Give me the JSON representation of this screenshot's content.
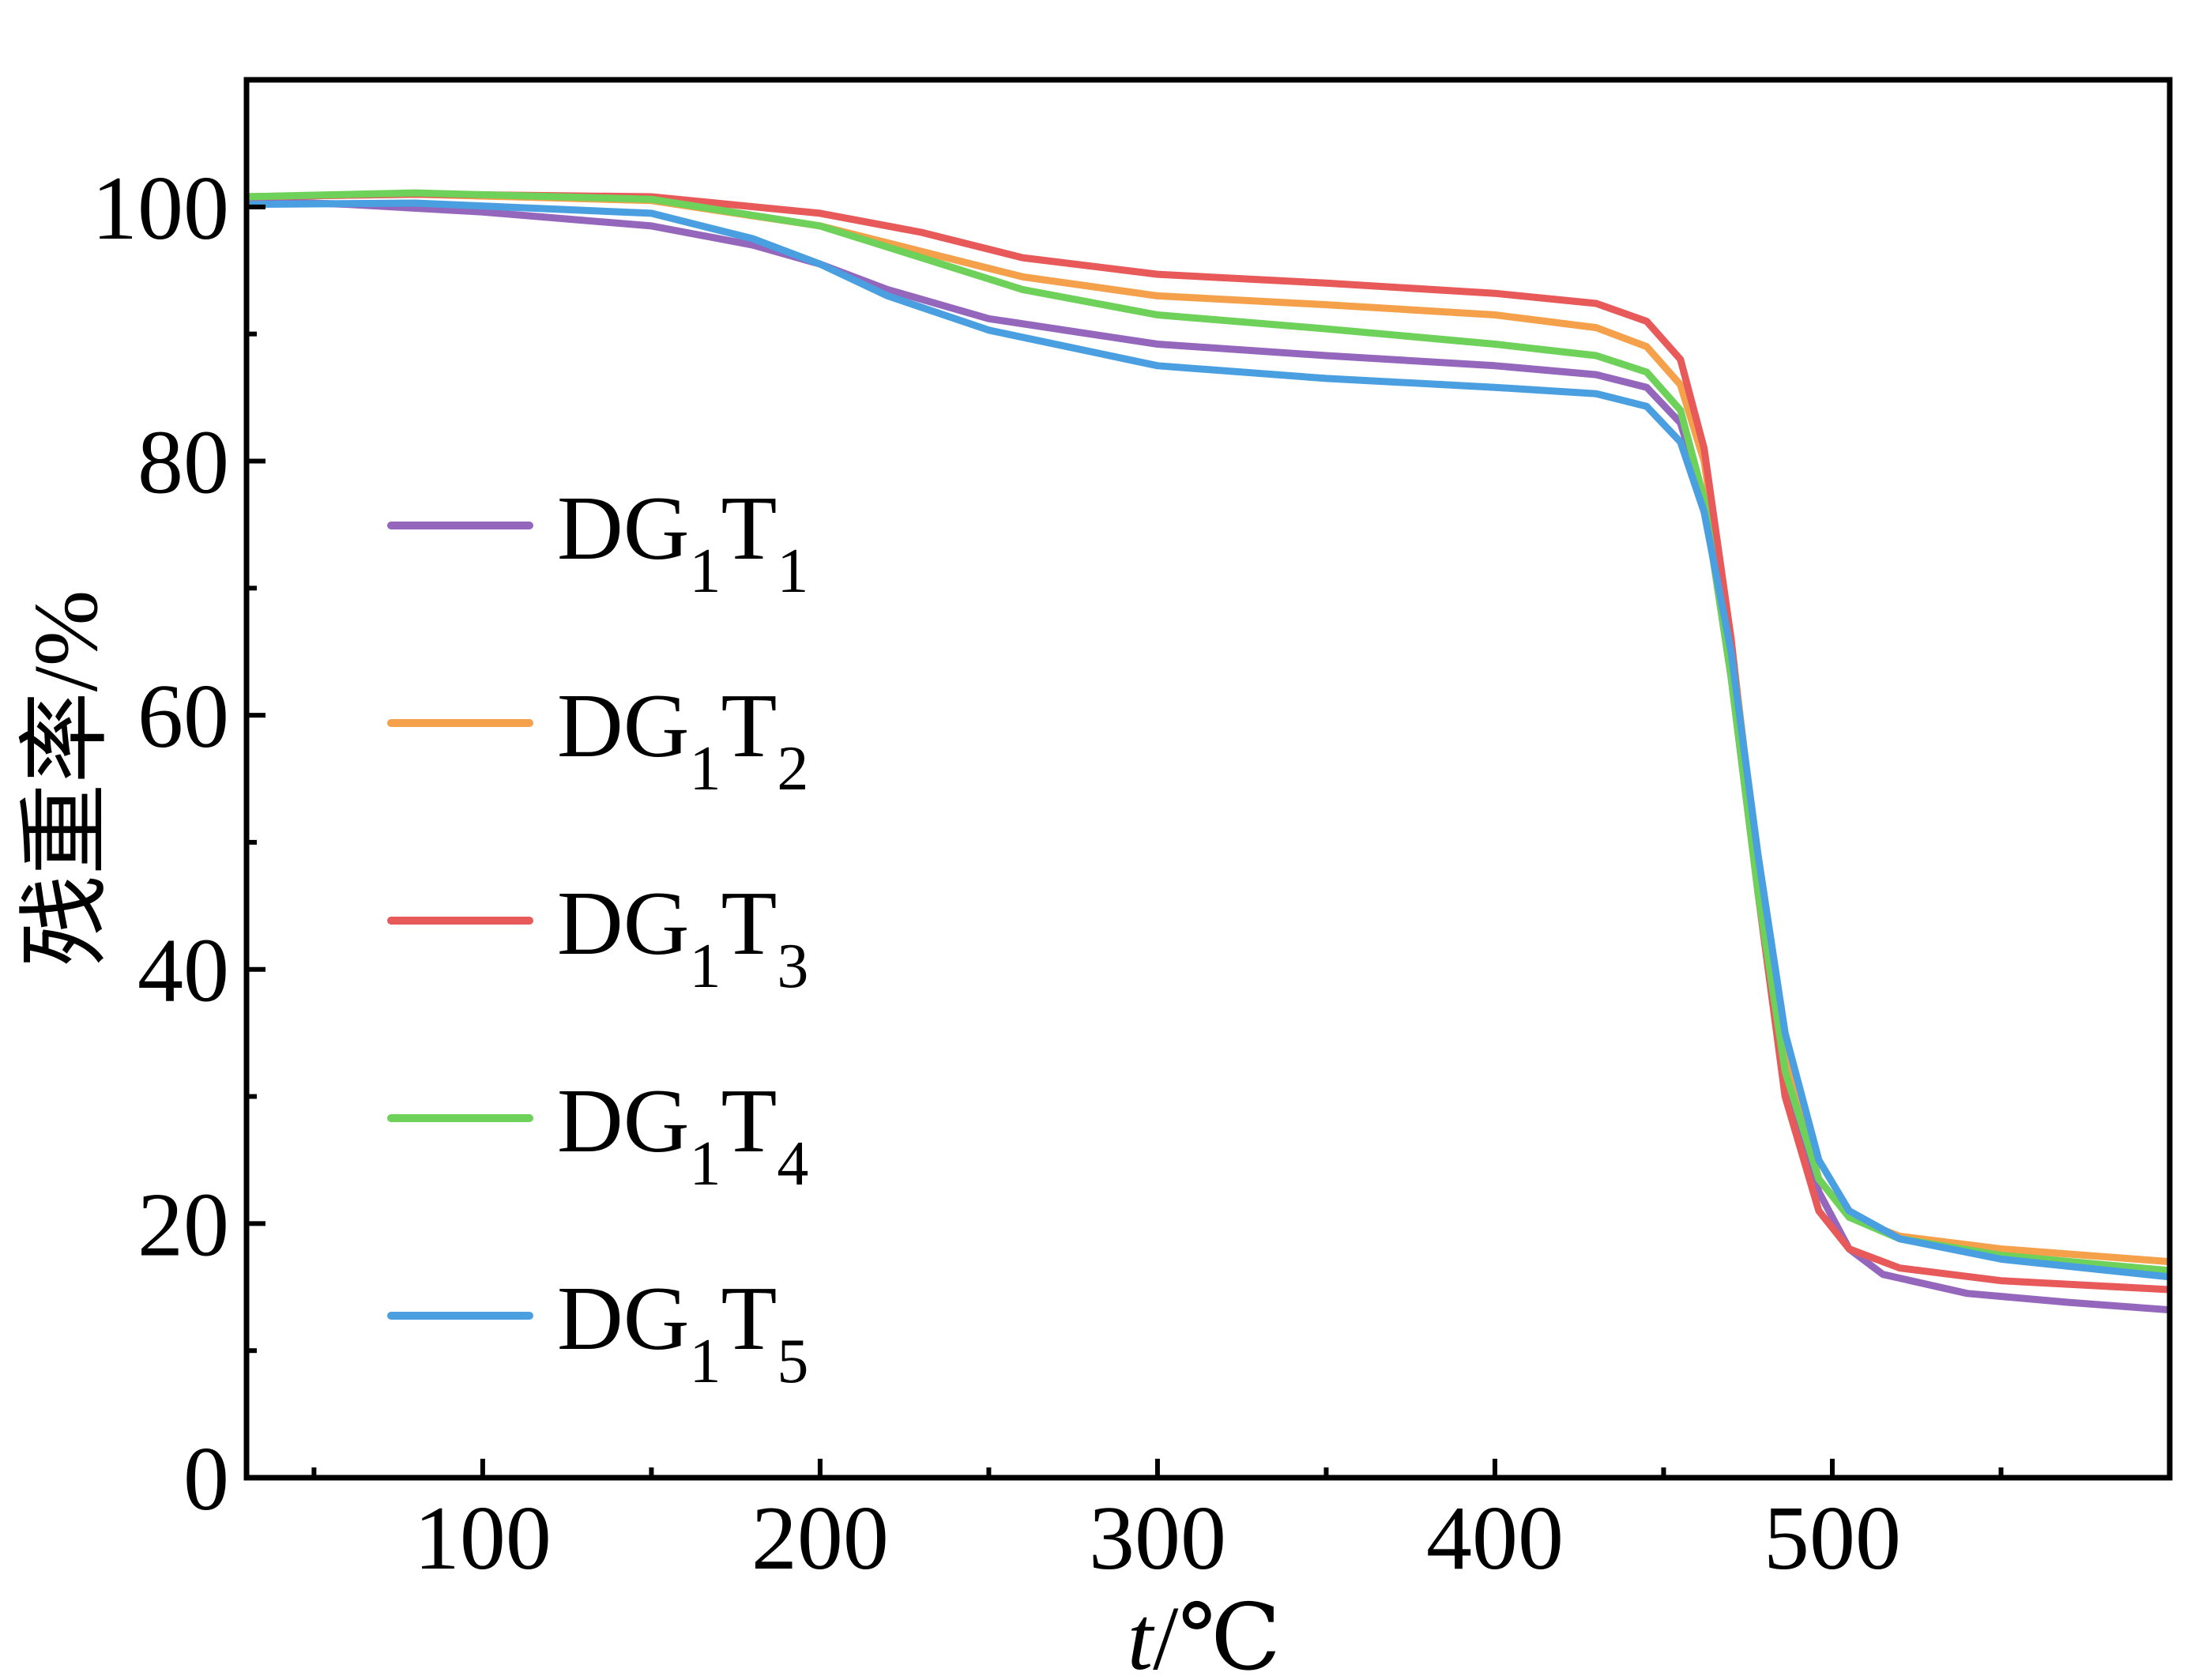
{
  "chart_data": {
    "type": "line",
    "xlabel_var": "t",
    "xlabel_unit": "/℃",
    "ylabel": "残重率/%",
    "xlim": [
      30,
      600
    ],
    "ylim": [
      0,
      110
    ],
    "xticks": [
      100,
      200,
      300,
      400,
      500
    ],
    "xminor": [
      50,
      150,
      250,
      350,
      450,
      550
    ],
    "yticks": [
      0,
      20,
      40,
      60,
      80,
      100
    ],
    "yminor": [
      10,
      30,
      50,
      70,
      90
    ],
    "grid": false,
    "legend_position": "left",
    "series": [
      {
        "name": "DG1T1",
        "base": "DG",
        "sub1": "1",
        "mid": "T",
        "sub2": "1",
        "color": "#9467bd",
        "points": [
          [
            30,
            100.5
          ],
          [
            60,
            100.2
          ],
          [
            100,
            99.6
          ],
          [
            150,
            98.5
          ],
          [
            180,
            97.0
          ],
          [
            200,
            95.5
          ],
          [
            220,
            93.5
          ],
          [
            250,
            91.2
          ],
          [
            300,
            89.2
          ],
          [
            350,
            88.3
          ],
          [
            400,
            87.5
          ],
          [
            430,
            86.8
          ],
          [
            445,
            85.8
          ],
          [
            455,
            83.0
          ],
          [
            462,
            77.0
          ],
          [
            470,
            63.0
          ],
          [
            478,
            46.0
          ],
          [
            486,
            32.0
          ],
          [
            496,
            22.5
          ],
          [
            505,
            18.0
          ],
          [
            515,
            16.0
          ],
          [
            540,
            14.5
          ],
          [
            570,
            13.8
          ],
          [
            600,
            13.2
          ]
        ]
      },
      {
        "name": "DG1T2",
        "base": "DG",
        "sub1": "1",
        "mid": "T",
        "sub2": "2",
        "color": "#f5a04a",
        "points": [
          [
            30,
            100.8
          ],
          [
            80,
            101.0
          ],
          [
            150,
            100.5
          ],
          [
            200,
            98.5
          ],
          [
            230,
            96.5
          ],
          [
            260,
            94.5
          ],
          [
            300,
            93.0
          ],
          [
            350,
            92.3
          ],
          [
            400,
            91.5
          ],
          [
            430,
            90.5
          ],
          [
            445,
            89.0
          ],
          [
            455,
            86.0
          ],
          [
            462,
            80.0
          ],
          [
            470,
            66.0
          ],
          [
            478,
            48.0
          ],
          [
            486,
            33.0
          ],
          [
            496,
            23.5
          ],
          [
            505,
            20.5
          ],
          [
            520,
            19.0
          ],
          [
            550,
            18.0
          ],
          [
            600,
            17.0
          ]
        ]
      },
      {
        "name": "DG1T3",
        "base": "DG",
        "sub1": "1",
        "mid": "T",
        "sub2": "3",
        "color": "#e8595a",
        "points": [
          [
            30,
            100.8
          ],
          [
            80,
            101.0
          ],
          [
            150,
            100.8
          ],
          [
            200,
            99.5
          ],
          [
            230,
            98.0
          ],
          [
            260,
            96.0
          ],
          [
            300,
            94.7
          ],
          [
            350,
            94.0
          ],
          [
            400,
            93.2
          ],
          [
            430,
            92.4
          ],
          [
            445,
            91.0
          ],
          [
            455,
            88.0
          ],
          [
            462,
            81.0
          ],
          [
            470,
            66.0
          ],
          [
            478,
            46.0
          ],
          [
            486,
            30.0
          ],
          [
            496,
            21.0
          ],
          [
            505,
            18.0
          ],
          [
            520,
            16.5
          ],
          [
            550,
            15.5
          ],
          [
            600,
            14.8
          ]
        ]
      },
      {
        "name": "DG1T4",
        "base": "DG",
        "sub1": "1",
        "mid": "T",
        "sub2": "4",
        "color": "#6dd15a",
        "points": [
          [
            30,
            100.8
          ],
          [
            80,
            101.1
          ],
          [
            150,
            100.6
          ],
          [
            200,
            98.5
          ],
          [
            230,
            96.0
          ],
          [
            260,
            93.5
          ],
          [
            300,
            91.5
          ],
          [
            350,
            90.4
          ],
          [
            400,
            89.2
          ],
          [
            430,
            88.3
          ],
          [
            445,
            87.0
          ],
          [
            455,
            84.0
          ],
          [
            462,
            77.0
          ],
          [
            470,
            63.0
          ],
          [
            478,
            46.0
          ],
          [
            486,
            32.0
          ],
          [
            496,
            23.5
          ],
          [
            505,
            20.5
          ],
          [
            520,
            18.8
          ],
          [
            550,
            17.5
          ],
          [
            600,
            16.3
          ]
        ]
      },
      {
        "name": "DG1T5",
        "base": "DG",
        "sub1": "1",
        "mid": "T",
        "sub2": "5",
        "color": "#4a9fe0",
        "points": [
          [
            30,
            100.2
          ],
          [
            80,
            100.3
          ],
          [
            150,
            99.5
          ],
          [
            180,
            97.5
          ],
          [
            200,
            95.5
          ],
          [
            220,
            93.0
          ],
          [
            250,
            90.3
          ],
          [
            300,
            87.5
          ],
          [
            350,
            86.5
          ],
          [
            400,
            85.8
          ],
          [
            430,
            85.3
          ],
          [
            445,
            84.3
          ],
          [
            455,
            81.5
          ],
          [
            462,
            76.0
          ],
          [
            470,
            65.0
          ],
          [
            478,
            49.0
          ],
          [
            486,
            35.0
          ],
          [
            496,
            25.0
          ],
          [
            505,
            21.0
          ],
          [
            520,
            18.8
          ],
          [
            550,
            17.2
          ],
          [
            600,
            15.8
          ]
        ]
      }
    ]
  }
}
